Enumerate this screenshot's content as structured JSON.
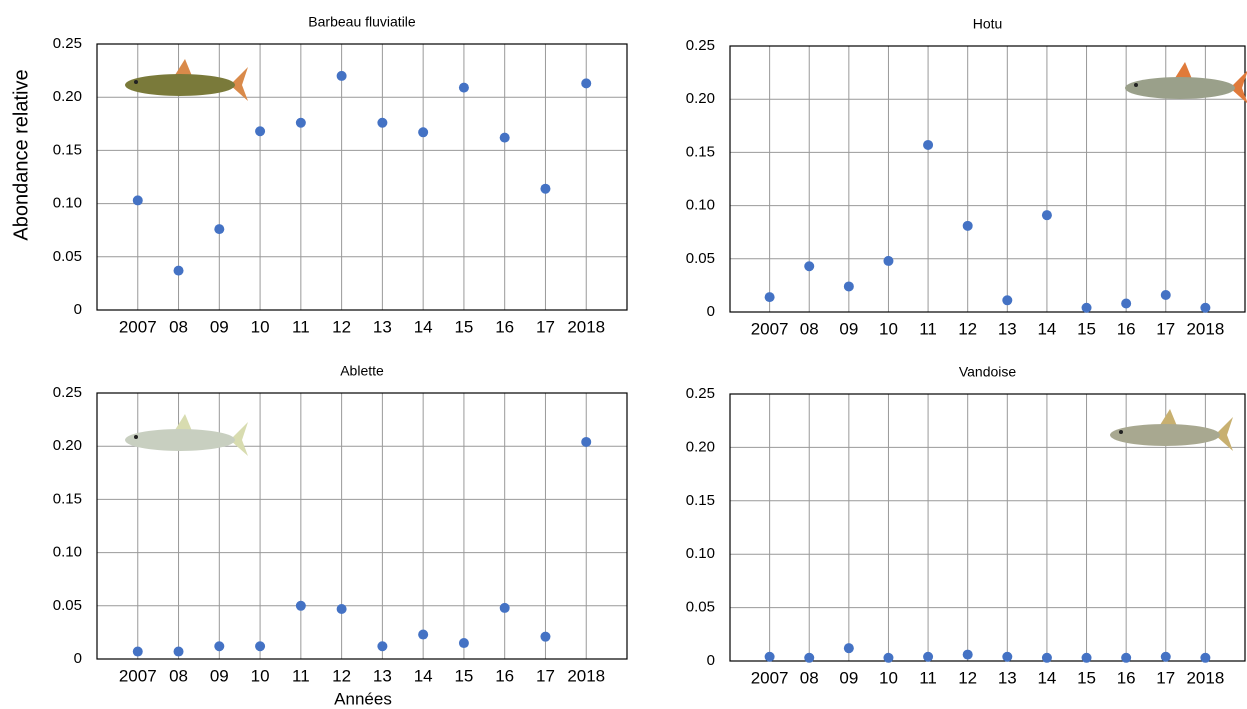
{
  "chart_data": [
    {
      "type": "scatter",
      "title": "Barbeau fluviatile",
      "ylabel": "Abondance relative",
      "categories": [
        "2007",
        "08",
        "09",
        "10",
        "11",
        "12",
        "13",
        "14",
        "15",
        "16",
        "17",
        "2018"
      ],
      "values": [
        0.103,
        0.037,
        0.076,
        0.168,
        0.176,
        0.22,
        0.176,
        0.167,
        0.209,
        0.162,
        0.114,
        0.213
      ],
      "color": "#4472c4",
      "ylim": [
        0,
        0.25
      ],
      "yticks": [
        0,
        0.05,
        {
          "value": 0.1,
          "label": "0.10"
        },
        0.15,
        {
          "value": 0.2,
          "label": "0.20"
        },
        0.25
      ],
      "grid": true
    },
    {
      "type": "scatter",
      "title": "Hotu",
      "categories": [
        "2007",
        "08",
        "09",
        "10",
        "11",
        "12",
        "13",
        "14",
        "15",
        "16",
        "17",
        "2018"
      ],
      "values": [
        0.014,
        0.043,
        0.024,
        0.048,
        0.157,
        0.081,
        0.011,
        0.091,
        0.004,
        0.008,
        0.016,
        0.004
      ],
      "color": "#4472c4",
      "ylim": [
        0,
        0.25
      ],
      "yticks": [
        0,
        0.05,
        {
          "value": 0.1,
          "label": "0.10"
        },
        0.15,
        {
          "value": 0.2,
          "label": "0.20"
        },
        0.25
      ],
      "grid": true
    },
    {
      "type": "scatter",
      "title": "Ablette",
      "xlabel": "Années",
      "categories": [
        "2007",
        "08",
        "09",
        "10",
        "11",
        "12",
        "13",
        "14",
        "15",
        "16",
        "17",
        "2018"
      ],
      "values": [
        0.007,
        0.007,
        0.012,
        0.012,
        0.05,
        0.047,
        0.012,
        0.023,
        0.015,
        0.048,
        0.021,
        0.204
      ],
      "color": "#4472c4",
      "ylim": [
        0,
        0.25
      ],
      "yticks": [
        0,
        0.05,
        {
          "value": 0.1,
          "label": "0.10"
        },
        0.15,
        {
          "value": 0.2,
          "label": "0.20"
        },
        0.25
      ],
      "grid": true
    },
    {
      "type": "scatter",
      "title": "Vandoise",
      "categories": [
        "2007",
        "08",
        "09",
        "10",
        "11",
        "12",
        "13",
        "14",
        "15",
        "16",
        "17",
        "2018"
      ],
      "values": [
        0.004,
        0.003,
        0.012,
        0.003,
        0.004,
        0.006,
        0.004,
        0.003,
        0.003,
        0.003,
        0.004,
        0.003
      ],
      "color": "#4472c4",
      "ylim": [
        0,
        0.25
      ],
      "yticks": [
        0,
        0.05,
        {
          "value": 0.1,
          "label": "0.10"
        },
        0.15,
        {
          "value": 0.2,
          "label": "0.20"
        },
        0.25
      ],
      "grid": true
    }
  ]
}
